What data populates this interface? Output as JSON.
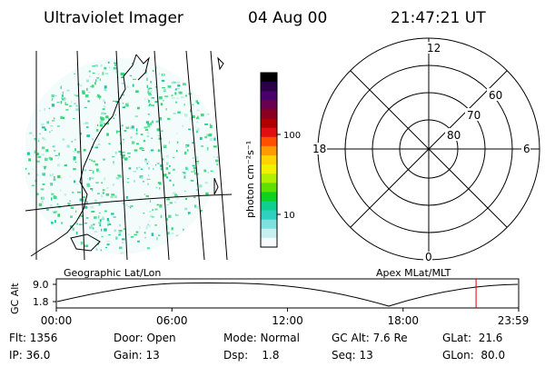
{
  "header": {
    "instrument": "Ultraviolet Imager",
    "date": "04 Aug 00",
    "time": "21:47:21 UT"
  },
  "geo_panel": {
    "label": "Geographic Lat/Lon"
  },
  "colorbar": {
    "unit_label": "photon cm⁻²s⁻¹",
    "ticks": [
      "100",
      "10"
    ],
    "colors": [
      "#000000",
      "#2a004a",
      "#4a006a",
      "#6a0050",
      "#8a0020",
      "#b00000",
      "#e01010",
      "#ff5000",
      "#ff9a00",
      "#ffd400",
      "#f0f000",
      "#b0f000",
      "#60e000",
      "#10d020",
      "#10d090",
      "#30d0c0",
      "#80e0e0",
      "#c8f0f0",
      "#f6fcfc"
    ]
  },
  "polar_plot": {
    "label": "Apex MLat/MLT",
    "mlt_labels": [
      "12",
      "18",
      "6",
      "0"
    ],
    "mlat_labels": [
      "60",
      "70",
      "80"
    ]
  },
  "altitude_plot": {
    "ylabel": "GC Alt",
    "yticks": [
      "9.0",
      "1.8"
    ],
    "xticks": [
      "00:00",
      "06:00",
      "12:00",
      "18:00",
      "23:59"
    ],
    "marker_time_hours": 21.79,
    "marker_color": "#e00000"
  },
  "status": {
    "flt": "Flt: 1356",
    "ip": "IP: 36.0",
    "door": "Door: Open",
    "gain": "Gain: 13",
    "mode": "Mode: Normal",
    "dsp": "Dsp:    1.8",
    "gc_alt": "GC Alt: 7.6 Re",
    "seq": "Seq: 13",
    "glat": "GLat:  21.6",
    "glon": "GLon:  80.0"
  }
}
